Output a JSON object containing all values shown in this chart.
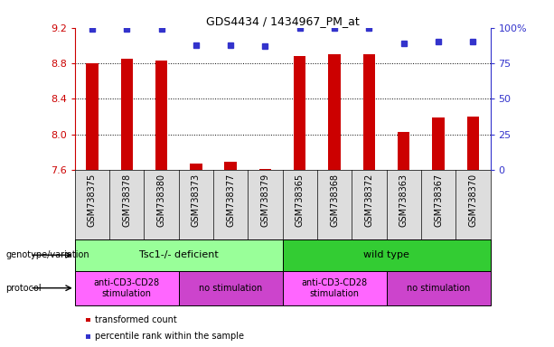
{
  "title": "GDS4434 / 1434967_PM_at",
  "samples": [
    "GSM738375",
    "GSM738378",
    "GSM738380",
    "GSM738373",
    "GSM738377",
    "GSM738379",
    "GSM738365",
    "GSM738368",
    "GSM738372",
    "GSM738363",
    "GSM738367",
    "GSM738370"
  ],
  "bar_values": [
    8.8,
    8.85,
    8.83,
    7.67,
    7.69,
    7.61,
    8.88,
    8.9,
    8.905,
    8.03,
    8.19,
    8.205
  ],
  "dot_values": [
    99,
    99,
    99,
    88,
    88,
    87,
    100,
    100,
    100,
    89,
    90,
    90
  ],
  "bar_bottom": 7.6,
  "ylim_left": [
    7.6,
    9.2
  ],
  "ylim_right": [
    0,
    100
  ],
  "yticks_left": [
    7.6,
    8.0,
    8.4,
    8.8,
    9.2
  ],
  "yticks_right": [
    0,
    25,
    50,
    75,
    100
  ],
  "bar_color": "#cc0000",
  "dot_color": "#3333cc",
  "genotype_groups": [
    {
      "label": "Tsc1-/- deficient",
      "start": 0,
      "end": 6,
      "color": "#99ff99"
    },
    {
      "label": "wild type",
      "start": 6,
      "end": 12,
      "color": "#33cc33"
    }
  ],
  "protocol_groups": [
    {
      "label": "anti-CD3-CD28\nstimulation",
      "start": 0,
      "end": 3,
      "color": "#ff66ff"
    },
    {
      "label": "no stimulation",
      "start": 3,
      "end": 6,
      "color": "#cc44cc"
    },
    {
      "label": "anti-CD3-CD28\nstimulation",
      "start": 6,
      "end": 9,
      "color": "#ff66ff"
    },
    {
      "label": "no stimulation",
      "start": 9,
      "end": 12,
      "color": "#cc44cc"
    }
  ],
  "legend_items": [
    {
      "label": "transformed count",
      "color": "#cc0000"
    },
    {
      "label": "percentile rank within the sample",
      "color": "#3333cc"
    }
  ],
  "left_label_color": "#cc0000",
  "right_label_color": "#3333cc",
  "genotype_label": "genotype/variation",
  "protocol_label": "protocol",
  "xtick_bg_color": "#dddddd",
  "border_color": "#000000"
}
